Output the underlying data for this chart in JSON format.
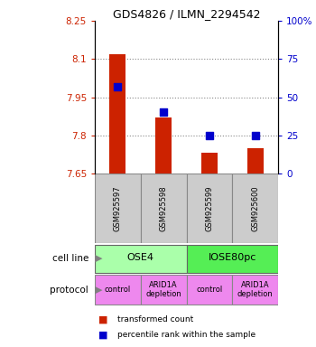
{
  "title": "GDS4826 / ILMN_2294542",
  "samples": [
    "GSM925597",
    "GSM925598",
    "GSM925599",
    "GSM925600"
  ],
  "red_values": [
    8.12,
    7.87,
    7.73,
    7.75
  ],
  "blue_values": [
    57,
    40,
    25,
    25
  ],
  "ylim_left": [
    7.65,
    8.25
  ],
  "ylim_right": [
    0,
    100
  ],
  "yticks_left": [
    7.65,
    7.8,
    7.95,
    8.1,
    8.25
  ],
  "ytick_labels_left": [
    "7.65",
    "7.8",
    "7.95",
    "8.1",
    "8.25"
  ],
  "yticks_right": [
    0,
    25,
    50,
    75,
    100
  ],
  "ytick_labels_right": [
    "0",
    "25",
    "50",
    "75",
    "100%"
  ],
  "cell_line_labels": [
    "OSE4",
    "IOSE80pc"
  ],
  "cell_line_colors": [
    "#aaffaa",
    "#55ee55"
  ],
  "protocol_labels": [
    "control",
    "ARID1A\ndepletion",
    "control",
    "ARID1A\ndepletion"
  ],
  "protocol_color": "#ee88ee",
  "bar_color": "#cc2200",
  "dot_color": "#0000cc",
  "bar_width": 0.35,
  "dot_size": 30,
  "grid_color": "#888888",
  "sample_box_color": "#cccccc",
  "left_axis_color": "#cc2200",
  "right_axis_color": "#0000cc",
  "legend_red_label": "transformed count",
  "legend_blue_label": "percentile rank within the sample",
  "cell_line_row_label": "cell line",
  "protocol_row_label": "protocol"
}
